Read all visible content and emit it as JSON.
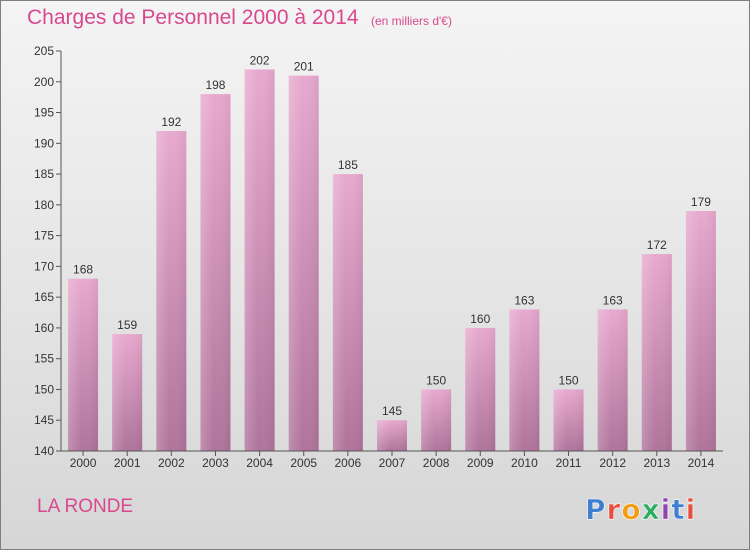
{
  "header": {
    "title": "Charges de Personnel 2000 à 2014",
    "subtitle": "(en milliers d'€)"
  },
  "footer": {
    "town": "LA RONDE",
    "logo_text": "Proxiti"
  },
  "colors": {
    "bar_top": "#e8a9cf",
    "bar_bottom": "#b0749b",
    "title": "#d9488f",
    "logo_letters": [
      "#3f7fd0",
      "#e84c3d",
      "#f39c12",
      "#27ae60",
      "#8e44ad",
      "#3f7fd0",
      "#e84c3d"
    ]
  },
  "chart_data": {
    "type": "bar",
    "title": "Charges de Personnel 2000 à 2014",
    "subtitle": "(en milliers d'€)",
    "categories": [
      "2000",
      "2001",
      "2002",
      "2003",
      "2004",
      "2005",
      "2006",
      "2007",
      "2008",
      "2009",
      "2010",
      "2011",
      "2012",
      "2013",
      "2014"
    ],
    "values": [
      168,
      159,
      192,
      198,
      202,
      201,
      185,
      145,
      150,
      160,
      163,
      150,
      163,
      172,
      179
    ],
    "data_labels": [
      "168",
      "159",
      "192",
      "198",
      "202",
      "201",
      "185",
      "145",
      "150",
      "160",
      "163",
      "150",
      "163",
      "172",
      "179"
    ],
    "ylim": [
      140,
      205
    ],
    "yticks": [
      140,
      145,
      150,
      155,
      160,
      165,
      170,
      175,
      180,
      185,
      190,
      195,
      200,
      205
    ],
    "ytick_labels": [
      "140",
      "145",
      "150",
      "155",
      "160",
      "165",
      "170",
      "175",
      "180",
      "185",
      "190",
      "195",
      "200",
      "205"
    ],
    "grid": false,
    "legend": "none"
  }
}
